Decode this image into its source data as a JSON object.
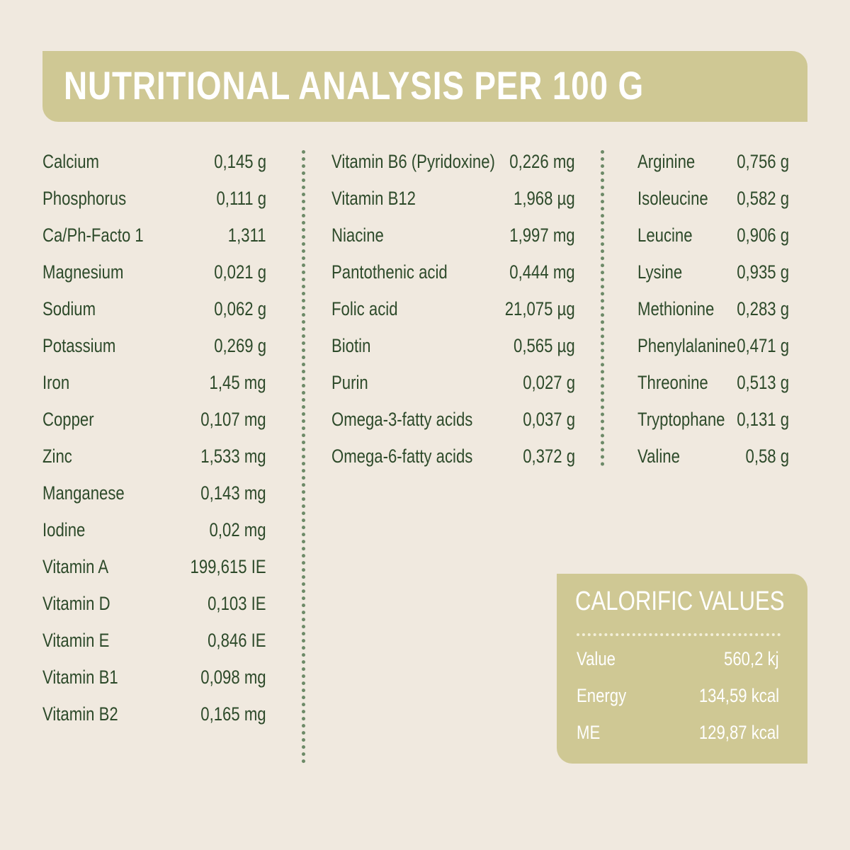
{
  "header": {
    "title": "NUTRITIONAL ANALYSIS PER 100 G"
  },
  "columns": [
    {
      "rows": [
        [
          "Calcium",
          "0,145 g"
        ],
        [
          "Phosphorus",
          "0,111 g"
        ],
        [
          "Ca/Ph-Facto 1",
          "1,311"
        ],
        [
          "Magnesium",
          "0,021 g"
        ],
        [
          "Sodium",
          "0,062 g"
        ],
        [
          "Potassium",
          "0,269 g"
        ],
        [
          "Iron",
          "1,45 mg"
        ],
        [
          "Copper",
          "0,107 mg"
        ],
        [
          "Zinc",
          "1,533 mg"
        ],
        [
          "Manganese",
          "0,143 mg"
        ],
        [
          "Iodine",
          "0,02 mg"
        ],
        [
          "Vitamin A",
          "199,615 IE"
        ],
        [
          "Vitamin D",
          "0,103 IE"
        ],
        [
          "Vitamin E",
          "0,846 IE"
        ],
        [
          "Vitamin B1",
          "0,098 mg"
        ],
        [
          "Vitamin B2",
          "0,165 mg"
        ]
      ]
    },
    {
      "rows": [
        [
          "Vitamin B6 (Pyridoxine)",
          "0,226 mg"
        ],
        [
          "Vitamin B12",
          "1,968 µg"
        ],
        [
          "Niacine",
          "1,997 mg"
        ],
        [
          "Pantothenic acid",
          "0,444 mg"
        ],
        [
          "Folic acid",
          "21,075 µg"
        ],
        [
          "Biotin",
          "0,565 µg"
        ],
        [
          "Purin",
          "0,027 g"
        ],
        [
          "Omega-3-fatty acids",
          "0,037 g"
        ],
        [
          "Omega-6-fatty acids",
          "0,372 g"
        ]
      ]
    },
    {
      "rows": [
        [
          "Arginine",
          "0,756 g"
        ],
        [
          "Isoleucine",
          "0,582 g"
        ],
        [
          "Leucine",
          "0,906 g"
        ],
        [
          "Lysine",
          "0,935 g"
        ],
        [
          "Methionine",
          "0,283 g"
        ],
        [
          "Phenylalanine",
          "0,471 g"
        ],
        [
          "Threonine",
          "0,513 g"
        ],
        [
          "Tryptophane",
          "0,131 g"
        ],
        [
          "Valine",
          "0,58 g"
        ]
      ]
    }
  ],
  "calorific": {
    "title": "CALORIFIC VALUES",
    "rows": [
      [
        "Value",
        "560,2 kj"
      ],
      [
        "Energy",
        "134,59 kcal"
      ],
      [
        "ME",
        "129,87 kcal"
      ]
    ]
  }
}
